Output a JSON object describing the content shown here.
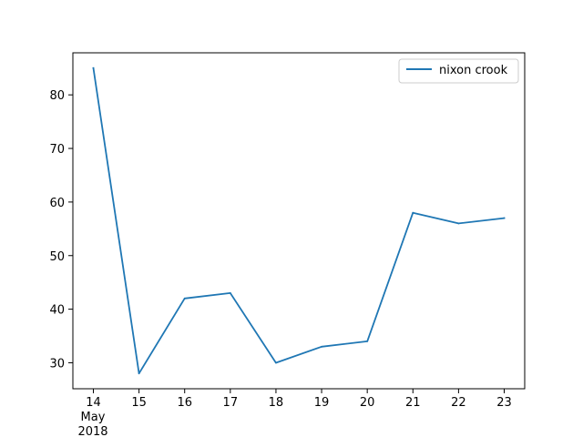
{
  "chart_data": {
    "type": "line",
    "x": [
      "2018-05-14",
      "2018-05-15",
      "2018-05-16",
      "2018-05-17",
      "2018-05-18",
      "2018-05-19",
      "2018-05-20",
      "2018-05-21",
      "2018-05-22",
      "2018-05-23"
    ],
    "x_tick_labels": [
      "14",
      "15",
      "16",
      "17",
      "18",
      "19",
      "20",
      "21",
      "22",
      "23"
    ],
    "x_tick_sublabel": {
      "month": "May",
      "year": "2018"
    },
    "series": [
      {
        "name": "nixon crook",
        "values": [
          85,
          28,
          42,
          43,
          30,
          33,
          34,
          58,
          56,
          57
        ],
        "color": "#1f77b4"
      }
    ],
    "y_ticks": [
      30,
      40,
      50,
      60,
      70,
      80
    ],
    "ylim": [
      25.15,
      87.85
    ],
    "title": "",
    "xlabel": "",
    "ylabel": "",
    "grid": false,
    "legend": "top-right"
  }
}
